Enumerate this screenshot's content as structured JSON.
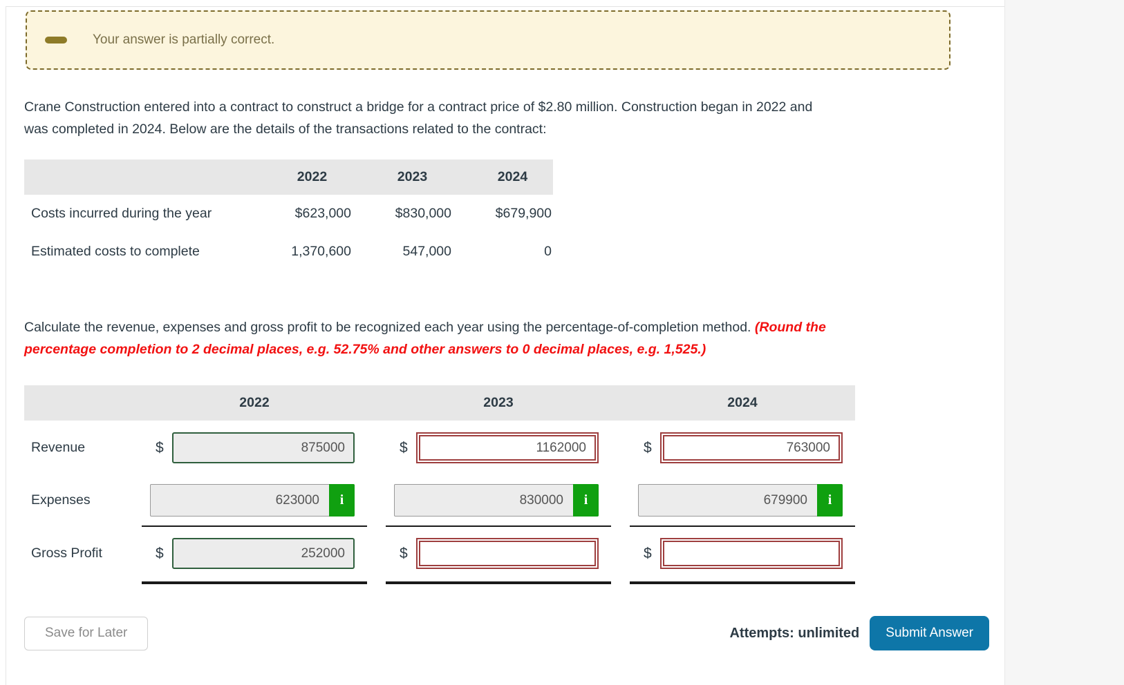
{
  "banner": {
    "message": "Your answer is partially correct."
  },
  "problem": {
    "line1": "Crane Construction entered into a contract to construct a bridge for a contract price of $2.80 million. Construction began in 2022 and",
    "line2": "was completed in 2024. Below are the details of the transactions related to the contract:"
  },
  "cost_table": {
    "years": [
      "2022",
      "2023",
      "2024"
    ],
    "rows": [
      {
        "label": "Costs incurred during the year",
        "values": [
          "$623,000",
          "$830,000",
          "$679,900"
        ]
      },
      {
        "label": "Estimated costs to complete",
        "values": [
          "1,370,600",
          "547,000",
          "0"
        ]
      }
    ]
  },
  "instruction": {
    "normal": "Calculate the revenue, expenses and gross profit to be recognized each year using the percentage-of-completion method. ",
    "em_part1": "(Round the",
    "em_part2": "percentage completion to 2 decimal places, e.g. 52.75% and other answers to 0 decimal places, e.g. 1,525.)"
  },
  "answer_table": {
    "years": [
      "2022",
      "2023",
      "2024"
    ],
    "currency": "$",
    "info_icon": "i",
    "row_labels": {
      "revenue": "Revenue",
      "expenses": "Expenses",
      "gross_profit": "Gross Profit"
    },
    "values": {
      "revenue": [
        "875000",
        "1162000",
        "763000"
      ],
      "expenses": [
        "623000",
        "830000",
        "679900"
      ],
      "gross_profit": [
        "252000",
        "",
        ""
      ]
    }
  },
  "footer": {
    "save_label": "Save for Later",
    "attempts_text": "Attempts: unlimited",
    "submit_label": "Submit Answer"
  },
  "colors": {
    "banner_bg": "#FCF5DD",
    "banner_border": "#7D6B2A",
    "correct_green_border": "#2F5F3D",
    "info_badge_green": "#10A010",
    "incorrect_red_border": "#9E3E3E",
    "instruction_red": "#F21111",
    "submit_blue": "#0E76A8",
    "table_header_gray": "#E7E7E7",
    "ink": "#2D3B45"
  }
}
